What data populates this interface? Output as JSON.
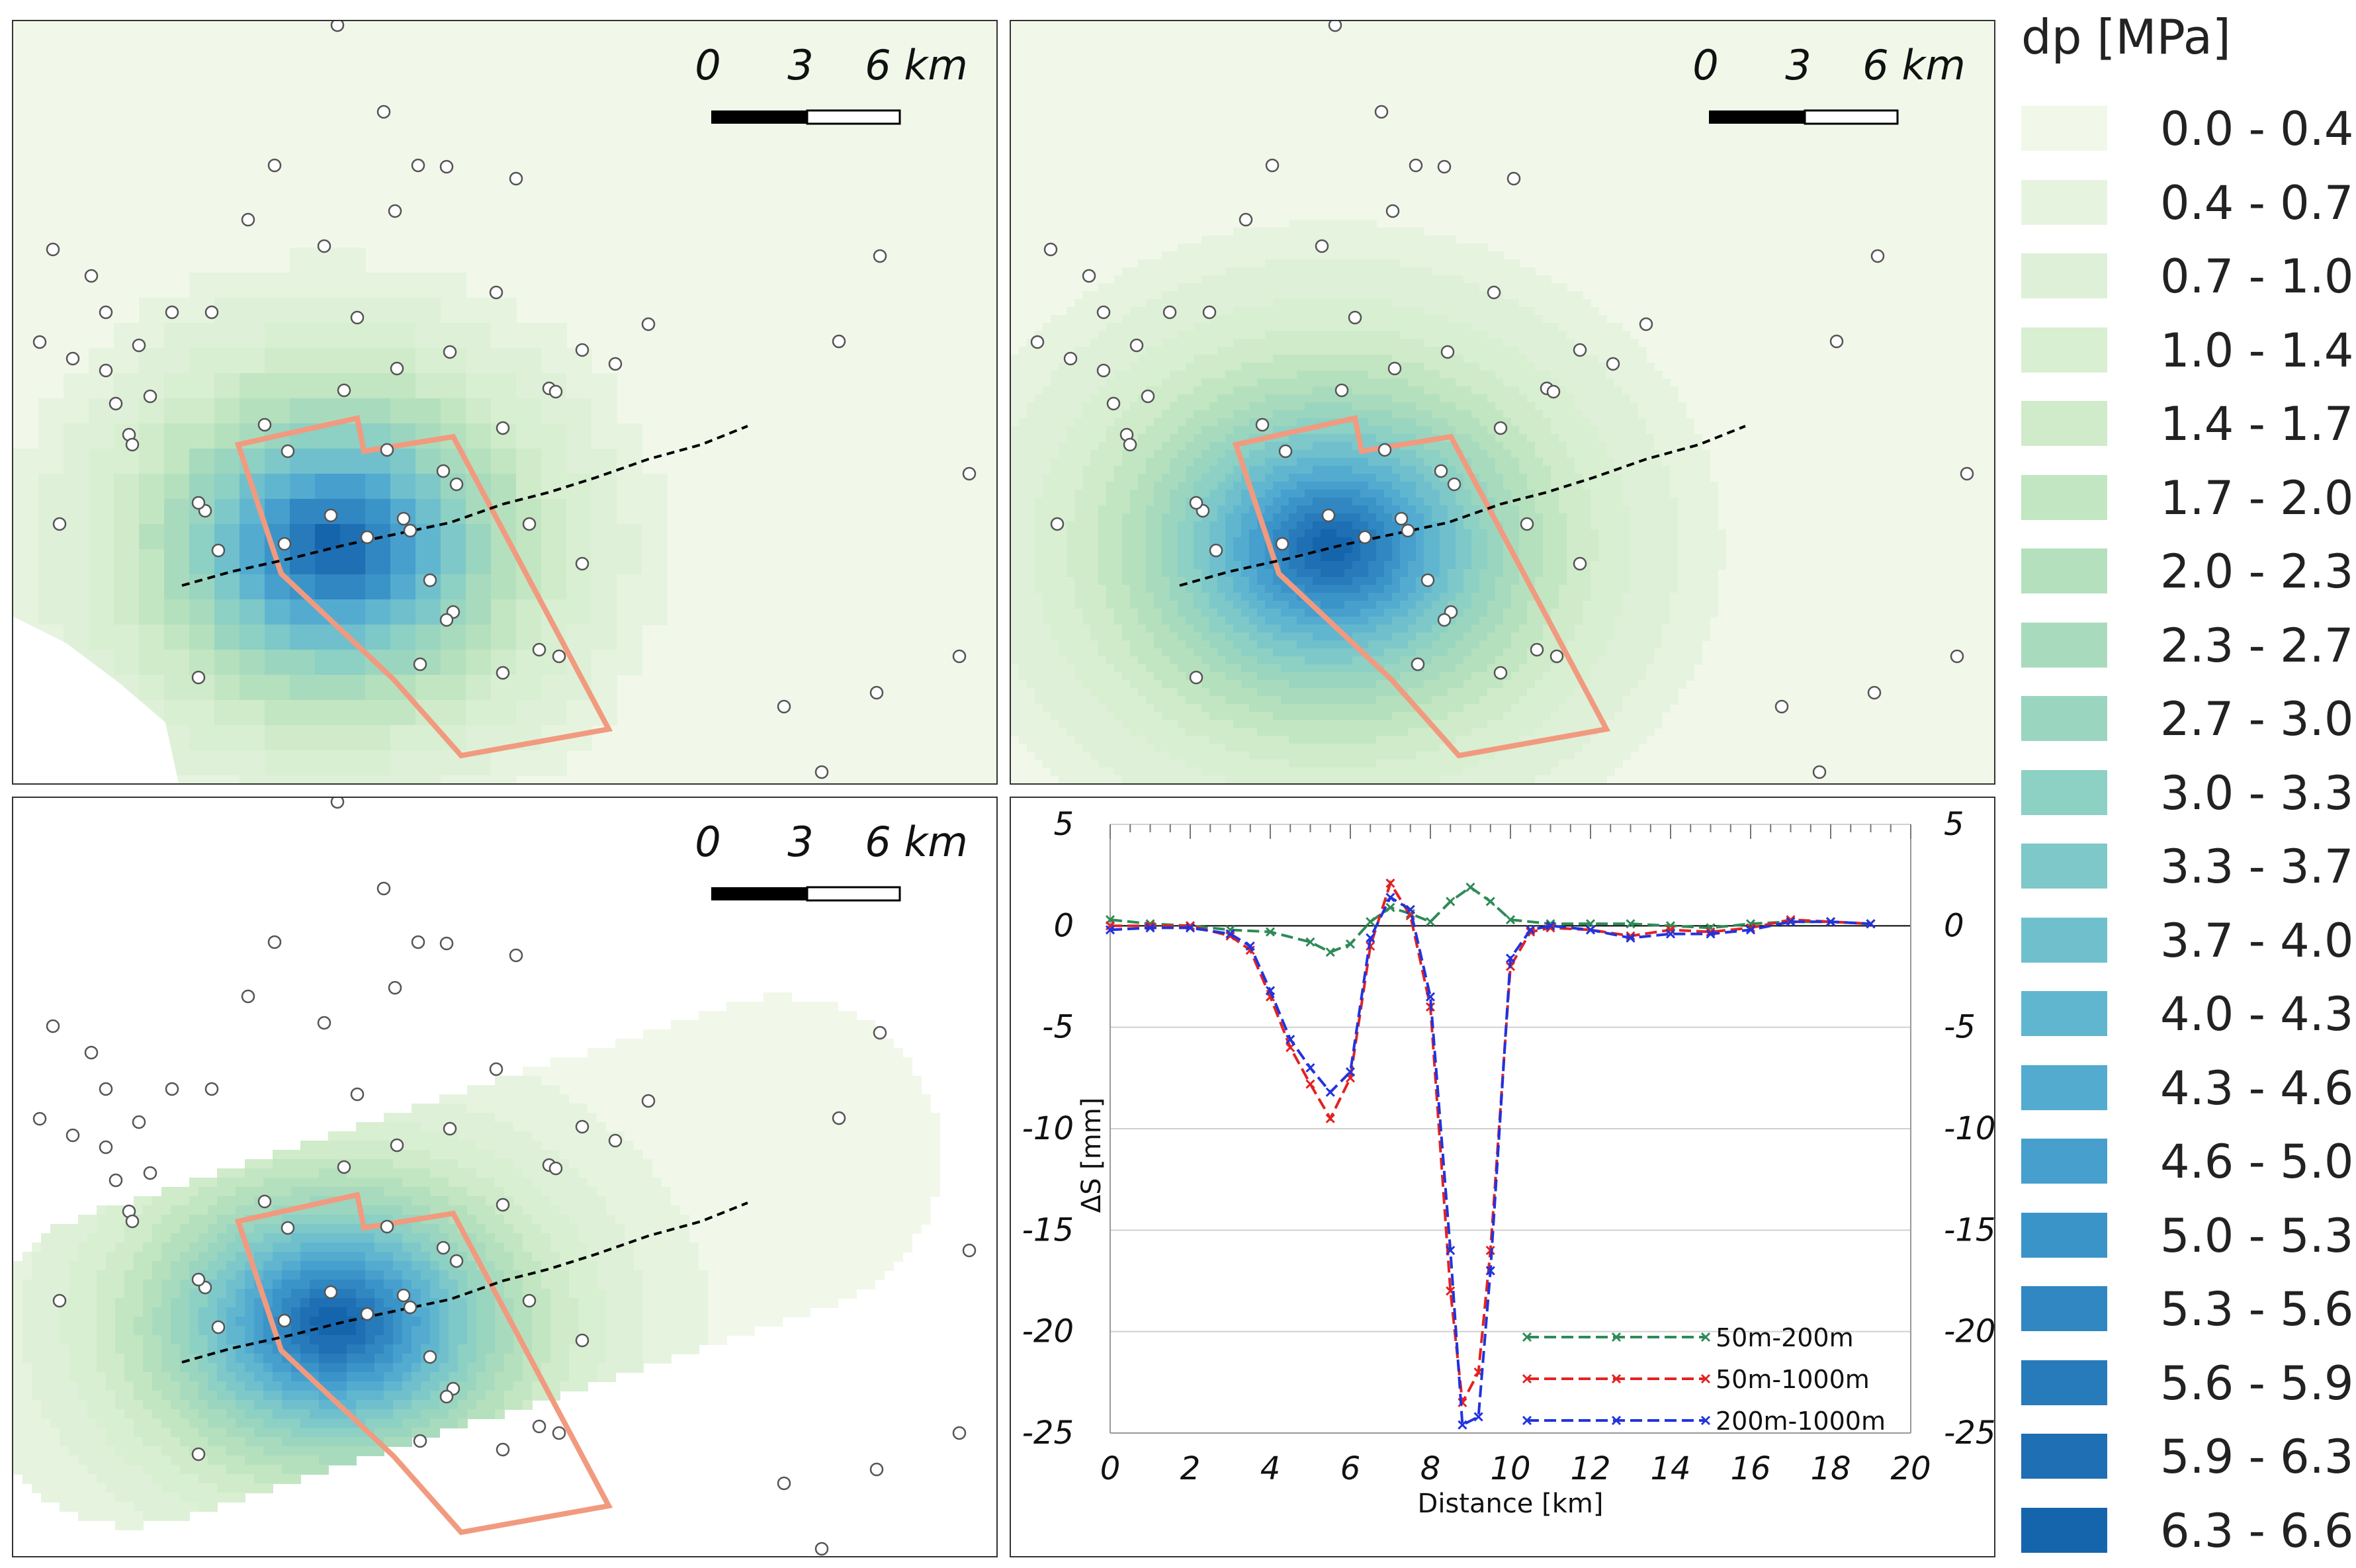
{
  "scale_bar": {
    "tick_0": "0",
    "tick_3": "3",
    "tick_6": "6 km"
  },
  "maps": [
    {
      "id": "map-top-left",
      "style": "pixelated"
    },
    {
      "id": "map-top-right",
      "style": "smooth"
    },
    {
      "id": "map-bottom-left",
      "style": "corridor"
    }
  ],
  "colors": {
    "outline": "#f19a7f",
    "fault": "#000000",
    "series_50_200": "#2e8b57",
    "series_50_1000": "#e32222",
    "series_200_1000": "#2233dd"
  },
  "legend": {
    "title": "dp [MPa]",
    "classes": [
      {
        "label": "0.0 - 0.4",
        "color": "#f1f8ea"
      },
      {
        "label": "0.4 - 0.7",
        "color": "#e6f4df"
      },
      {
        "label": "0.7 - 1.0",
        "color": "#def1d8"
      },
      {
        "label": "1.0 - 1.4",
        "color": "#d8efd2"
      },
      {
        "label": "1.4 - 1.7",
        "color": "#cfebca"
      },
      {
        "label": "1.7 - 2.0",
        "color": "#c2e6c1"
      },
      {
        "label": "2.0 - 2.3",
        "color": "#b5e0bd"
      },
      {
        "label": "2.3 - 2.7",
        "color": "#a8dbbd"
      },
      {
        "label": "2.7 - 3.0",
        "color": "#9ad5c0"
      },
      {
        "label": "3.0 - 3.3",
        "color": "#8dd0c4"
      },
      {
        "label": "3.3 - 3.7",
        "color": "#7ec8c9"
      },
      {
        "label": "3.7 - 4.0",
        "color": "#6fc0cc"
      },
      {
        "label": "4.0 - 4.3",
        "color": "#61b6cf"
      },
      {
        "label": "4.3 - 4.6",
        "color": "#53abd0"
      },
      {
        "label": "4.6 - 5.0",
        "color": "#469fcd"
      },
      {
        "label": "5.0 - 5.3",
        "color": "#3b94c8"
      },
      {
        "label": "5.3 - 5.6",
        "color": "#3187c1"
      },
      {
        "label": "5.6 - 5.9",
        "color": "#277bba"
      },
      {
        "label": "5.9 - 6.3",
        "color": "#1e6fb3"
      },
      {
        "label": "6.3 - 6.6",
        "color": "#1565ad"
      }
    ]
  },
  "chart_data": {
    "type": "line",
    "xlabel": "Distance [km]",
    "ylabel": "ΔS [mm]",
    "xlim": [
      0,
      20
    ],
    "ylim": [
      -25,
      5
    ],
    "xticks": [
      "0",
      "2",
      "4",
      "6",
      "8",
      "10",
      "12",
      "14",
      "16",
      "18",
      "20"
    ],
    "yticks": [
      "5",
      "0",
      "-5",
      "-10",
      "-15",
      "-20",
      "-25"
    ],
    "series": [
      {
        "name": "50m-200m",
        "x": [
          0,
          1,
          2,
          3,
          4,
          5,
          5.5,
          6,
          6.5,
          7,
          7.5,
          8,
          8.5,
          9,
          9.5,
          10,
          11,
          12,
          13,
          14,
          15,
          16,
          17,
          18,
          19
        ],
        "y": [
          0.3,
          0.1,
          0,
          -0.2,
          -0.3,
          -0.8,
          -1.3,
          -0.9,
          0.2,
          0.9,
          0.6,
          0.2,
          1.2,
          1.9,
          1.2,
          0.3,
          0.1,
          0.1,
          0.1,
          0,
          -0.1,
          0.1,
          0.2,
          0.2,
          0.1
        ]
      },
      {
        "name": "50m-1000m",
        "x": [
          0,
          1,
          2,
          3,
          3.5,
          4,
          4.5,
          5,
          5.5,
          6,
          6.5,
          7,
          7.5,
          8,
          8.5,
          8.8,
          9.2,
          9.5,
          10,
          10.5,
          11,
          12,
          13,
          14,
          15,
          16,
          17,
          18,
          19
        ],
        "y": [
          0,
          0,
          0,
          -0.5,
          -1.2,
          -3.5,
          -6,
          -7.8,
          -9.5,
          -7.5,
          -1,
          2.1,
          0.5,
          -4,
          -18,
          -23.5,
          -22,
          -16,
          -2,
          -0.3,
          -0.1,
          -0.2,
          -0.5,
          -0.2,
          -0.3,
          -0.1,
          0.3,
          0.2,
          0.1
        ]
      },
      {
        "name": "200m-1000m",
        "x": [
          0,
          1,
          2,
          3,
          3.5,
          4,
          4.5,
          5,
          5.5,
          6,
          6.5,
          7,
          7.5,
          8,
          8.5,
          8.8,
          9.2,
          9.5,
          10,
          10.5,
          11,
          12,
          13,
          14,
          15,
          16,
          17,
          18,
          19
        ],
        "y": [
          -0.2,
          -0.1,
          -0.1,
          -0.4,
          -1,
          -3.2,
          -5.6,
          -7,
          -8.2,
          -7.2,
          -0.6,
          1.4,
          0.8,
          -3.5,
          -16,
          -24.6,
          -24.2,
          -17,
          -1.6,
          -0.2,
          0,
          -0.2,
          -0.6,
          -0.4,
          -0.4,
          -0.2,
          0.2,
          0.2,
          0.1
        ]
      }
    ]
  }
}
